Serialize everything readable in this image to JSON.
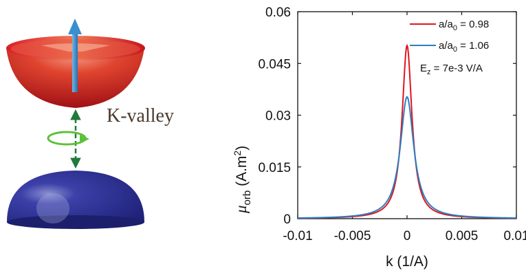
{
  "illustration": {
    "valley_label": "K-valley",
    "colors": {
      "upper_cone": "#c4161c",
      "lower_dome": "#2c2f94",
      "spin_arrow": "#3a8fd0",
      "transition_arrow": "#1f7a3c",
      "orbit_ring": "#5fc13a"
    },
    "icons": [
      "spin-arrow-icon",
      "transition-arrow-icon",
      "orbit-ring-icon"
    ]
  },
  "chart_data": {
    "type": "line",
    "xlabel": "k (1/A)",
    "ylabel_symbol": "μ",
    "ylabel_subscript": "orb",
    "ylabel_unit": " (A.m",
    "ylabel_unit_sup": "2",
    "ylabel_close": ")",
    "xlim": [
      -0.01,
      0.01
    ],
    "ylim": [
      0,
      0.06
    ],
    "xticks": [
      -0.01,
      -0.005,
      0,
      0.005,
      0.01
    ],
    "xtick_labels": [
      "-0.01",
      "-0.005",
      "0",
      "0.005",
      "0.01"
    ],
    "yticks": [
      0,
      0.015,
      0.03,
      0.045,
      0.06
    ],
    "ytick_labels": [
      "0",
      "0.015",
      "0.03",
      "0.045",
      "0.06"
    ],
    "grid": false,
    "legend_position": "top-right",
    "annotation": {
      "base": "E",
      "sub": "z",
      "rest": " = 7e-3 V/A"
    },
    "series": [
      {
        "label_base": "a/a",
        "label_sub": "0",
        "label_rest": " = 0.98",
        "color": "#e0141e",
        "peak": 0.0502,
        "half_width": 0.00055,
        "x": [
          -0.01,
          -0.008,
          -0.006,
          -0.005,
          -0.004,
          -0.003,
          -0.0025,
          -0.002,
          -0.0015,
          -0.001,
          -0.0008,
          -0.0006,
          -0.0004,
          -0.0002,
          0,
          0.0002,
          0.0004,
          0.0006,
          0.0008,
          0.001,
          0.0015,
          0.002,
          0.0025,
          0.003,
          0.004,
          0.005,
          0.006,
          0.008,
          0.01
        ],
        "y": [
          0.0002,
          0.0003,
          0.0004,
          0.0006,
          0.0009,
          0.0016,
          0.0023,
          0.0035,
          0.0059,
          0.0117,
          0.016,
          0.0229,
          0.0331,
          0.0444,
          0.0502,
          0.0444,
          0.0331,
          0.0229,
          0.016,
          0.0117,
          0.0059,
          0.0035,
          0.0023,
          0.0016,
          0.0009,
          0.0006,
          0.0004,
          0.0003,
          0.0002
        ]
      },
      {
        "label_base": "a/a",
        "label_sub": "0",
        "label_rest": " = 1.06",
        "color": "#2a7fc0",
        "peak": 0.0353,
        "half_width": 0.00075,
        "x": [
          -0.01,
          -0.008,
          -0.006,
          -0.005,
          -0.004,
          -0.003,
          -0.0025,
          -0.002,
          -0.0015,
          -0.001,
          -0.0008,
          -0.0006,
          -0.0004,
          -0.0002,
          0,
          0.0002,
          0.0004,
          0.0006,
          0.0008,
          0.001,
          0.0015,
          0.002,
          0.0025,
          0.003,
          0.004,
          0.005,
          0.006,
          0.008,
          0.01
        ],
        "y": [
          0.0003,
          0.0005,
          0.0008,
          0.0011,
          0.0017,
          0.0028,
          0.0039,
          0.0055,
          0.0088,
          0.015,
          0.0186,
          0.0233,
          0.0289,
          0.0338,
          0.0353,
          0.0338,
          0.0289,
          0.0233,
          0.0186,
          0.015,
          0.0088,
          0.0055,
          0.0039,
          0.0028,
          0.0017,
          0.0011,
          0.0008,
          0.0005,
          0.0003
        ]
      }
    ]
  }
}
